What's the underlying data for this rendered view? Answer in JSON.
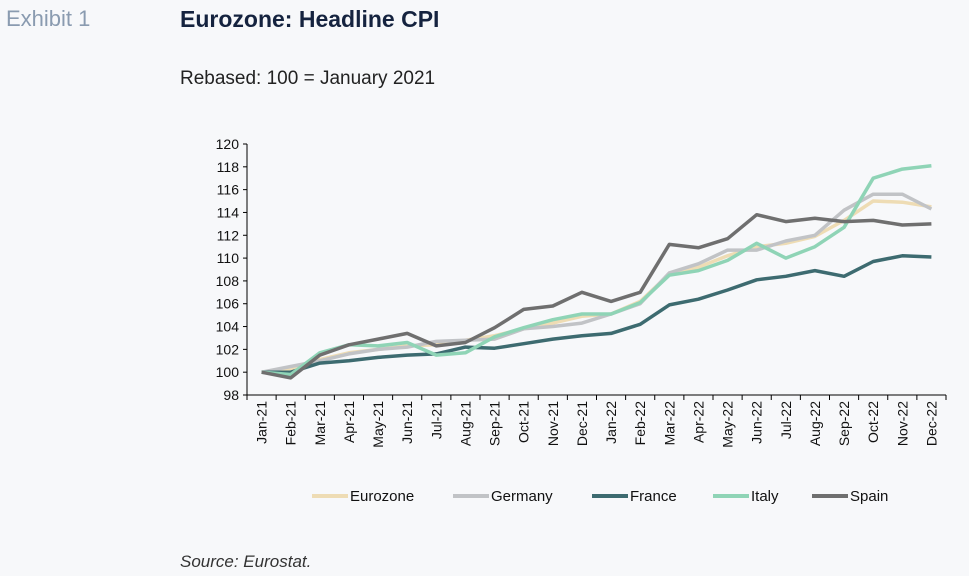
{
  "header": {
    "exhibit": "Exhibit 1",
    "title": "Eurozone: Headline CPI",
    "subtitle": "Rebased: 100 = January 2021"
  },
  "footer": {
    "source": "Source: Eurostat."
  },
  "chart_data": {
    "type": "line",
    "title": "Eurozone: Headline CPI",
    "xlabel": "",
    "ylabel": "",
    "ylim": [
      98,
      120
    ],
    "yticks": [
      98,
      100,
      102,
      104,
      106,
      108,
      110,
      112,
      114,
      116,
      118,
      120
    ],
    "grid": false,
    "legend_position": "bottom",
    "categories": [
      "Jan-21",
      "Feb-21",
      "Mar-21",
      "Apr-21",
      "May-21",
      "Jun-21",
      "Jul-21",
      "Aug-21",
      "Sep-21",
      "Oct-21",
      "Nov-21",
      "Dec-21",
      "Jan-22",
      "Feb-22",
      "Mar-22",
      "Apr-22",
      "May-22",
      "Jun-22",
      "Jul-22",
      "Aug-22",
      "Sep-22",
      "Oct-22",
      "Nov-22",
      "Dec-22"
    ],
    "series": [
      {
        "name": "Eurozone",
        "color": "#eedcb4",
        "values": [
          100,
          100.2,
          101.1,
          101.7,
          102.0,
          102.3,
          102.4,
          102.8,
          103.2,
          103.8,
          104.3,
          104.9,
          105.1,
          106.2,
          108.6,
          109.2,
          110.2,
          111.0,
          111.3,
          111.9,
          113.3,
          115.0,
          114.9,
          114.5
        ]
      },
      {
        "name": "Germany",
        "color": "#c1c3c6",
        "values": [
          100,
          100.5,
          101.0,
          101.6,
          102.0,
          102.2,
          102.7,
          102.8,
          102.9,
          103.8,
          104.0,
          104.3,
          105.1,
          106.0,
          108.7,
          109.5,
          110.7,
          110.7,
          111.5,
          112.0,
          114.2,
          115.6,
          115.6,
          114.3
        ]
      },
      {
        "name": "France",
        "color": "#3d6b70",
        "values": [
          100,
          100.0,
          100.8,
          101.0,
          101.3,
          101.5,
          101.6,
          102.2,
          102.1,
          102.5,
          102.9,
          103.2,
          103.4,
          104.2,
          105.9,
          106.4,
          107.2,
          108.1,
          108.4,
          108.9,
          108.4,
          109.7,
          110.2,
          110.1
        ]
      },
      {
        "name": "Italy",
        "color": "#8fd4b6",
        "values": [
          100,
          99.8,
          101.7,
          102.4,
          102.3,
          102.6,
          101.5,
          101.7,
          103.1,
          103.9,
          104.6,
          105.1,
          105.1,
          106.1,
          108.5,
          108.9,
          109.8,
          111.3,
          110.0,
          111.0,
          112.7,
          117.0,
          117.8,
          118.1
        ]
      },
      {
        "name": "Spain",
        "color": "#6f6f6f",
        "values": [
          100,
          99.5,
          101.5,
          102.4,
          102.9,
          103.4,
          102.3,
          102.6,
          103.9,
          105.5,
          105.8,
          107.0,
          106.2,
          107.0,
          111.2,
          110.9,
          111.7,
          113.8,
          113.2,
          113.5,
          113.2,
          113.3,
          112.9,
          113.0
        ]
      }
    ]
  }
}
